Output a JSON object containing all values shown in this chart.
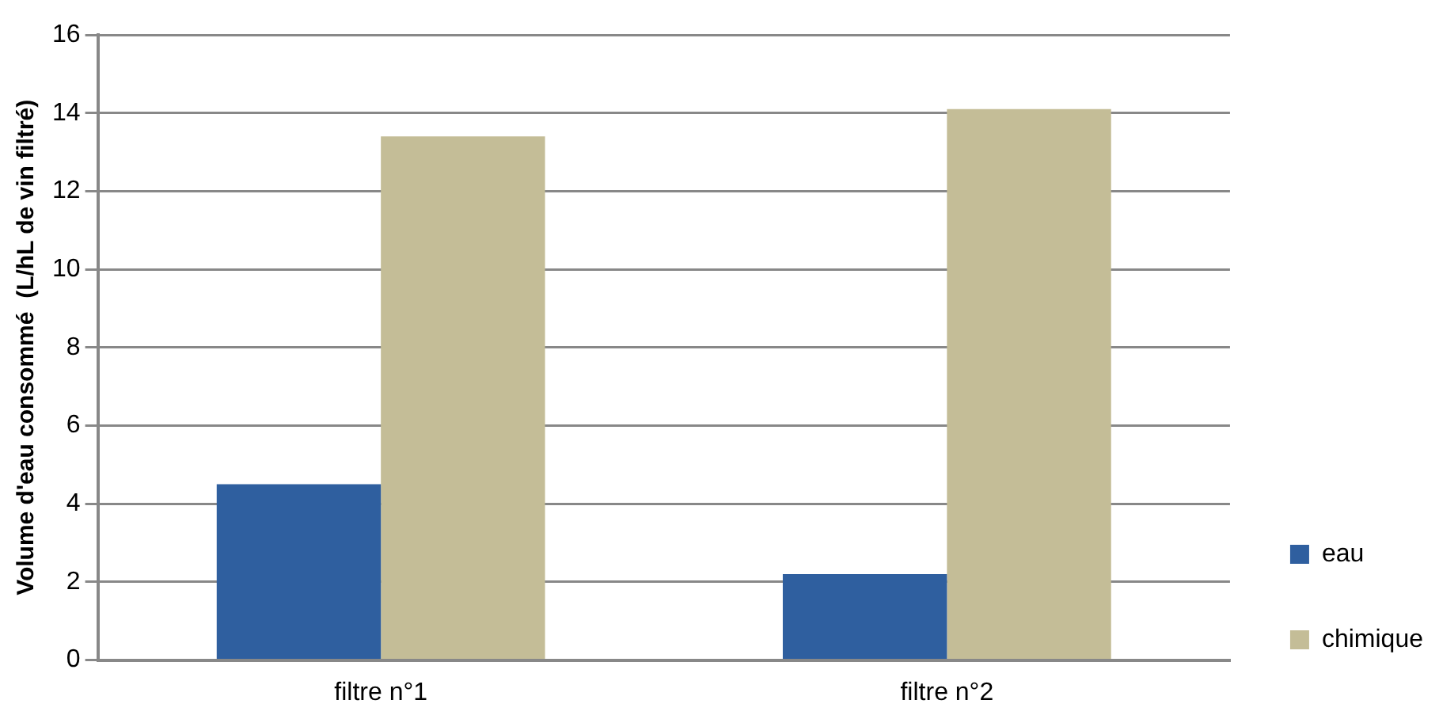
{
  "chart_data": {
    "type": "bar",
    "ylabel": "Volume d'eau consommé  (L/hL de vin filtré)",
    "categories": [
      "filtre n°1",
      "filtre n°2"
    ],
    "series": [
      {
        "name": "eau",
        "color": "#2f5f9f",
        "values": [
          4.5,
          2.2
        ]
      },
      {
        "name": "chimique",
        "color": "#c4bd97",
        "values": [
          13.4,
          14.1
        ]
      }
    ],
    "ylim": [
      0,
      16
    ],
    "yticks": [
      0,
      2,
      4,
      6,
      8,
      10,
      12,
      14,
      16
    ],
    "grid": "y",
    "legend": "right"
  }
}
